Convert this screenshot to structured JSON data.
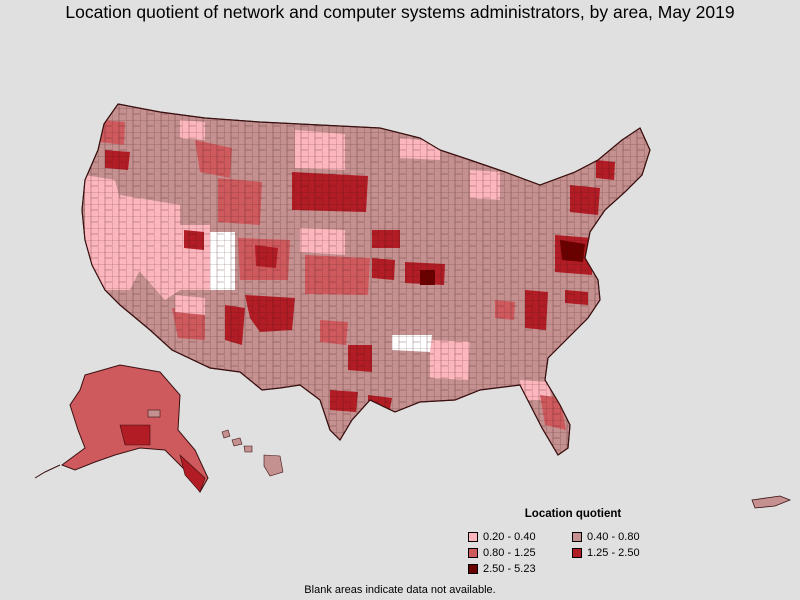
{
  "title": "Location quotient of network and computer systems administrators, by area, May 2019",
  "legend": {
    "title": "Location quotient",
    "items": [
      {
        "label": "0.20 - 0.40",
        "color": "#fcb6be"
      },
      {
        "label": "0.40 - 0.80",
        "color": "#c49090"
      },
      {
        "label": "0.80 - 1.25",
        "color": "#cf5a5e"
      },
      {
        "label": "1.25 - 2.50",
        "color": "#b21c24"
      },
      {
        "label": "2.50 - 5.23",
        "color": "#6a0000"
      }
    ]
  },
  "footnote": "Blank areas indicate data not available.",
  "colors": {
    "background": "#e0e0e0",
    "border": "#3a1010",
    "no_data": "#ffffff"
  }
}
